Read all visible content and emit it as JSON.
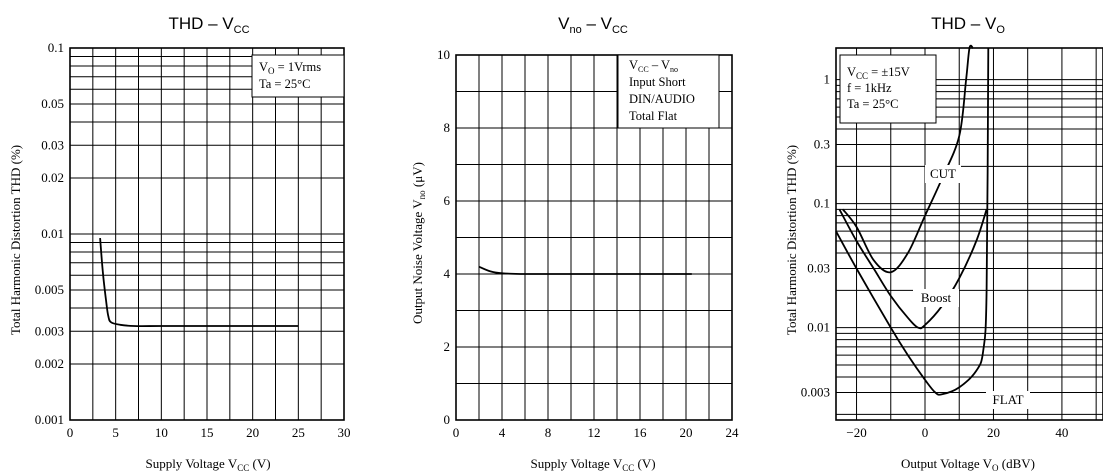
{
  "chart_data": [
    {
      "type": "line",
      "title": "THD – V",
      "title_sub": "CC",
      "xlabel": "Supply Voltage V",
      "xlabel_sub": "CC",
      "xlabel_unit": " (V)",
      "ylabel": "Total Harmonic Distortion THD (%)",
      "xlim": [
        0,
        30
      ],
      "ylim": [
        0.001,
        0.1
      ],
      "yscale": "log",
      "grid": true,
      "x_ticks": [
        0,
        5,
        10,
        15,
        20,
        25,
        30
      ],
      "y_ticks": [
        0.001,
        0.002,
        0.003,
        0.005,
        0.01,
        0.02,
        0.03,
        0.05,
        0.1
      ],
      "y_tick_labels": [
        "0.001",
        "0.002",
        "0.003",
        "0.005",
        "0.01",
        "0.02",
        "0.03",
        "0.05",
        "0.1"
      ],
      "notes": [
        {
          "text": "V",
          "sub": "O",
          "rest": " = 1Vrms"
        },
        {
          "text": "Ta = 25°C"
        }
      ],
      "notes_position": "top-right",
      "series": [
        {
          "x": [
            3.3,
            3.6,
            4.0,
            4.2,
            4.5,
            5.5,
            7,
            10,
            15,
            20,
            25
          ],
          "y": [
            0.0095,
            0.0062,
            0.0042,
            0.0036,
            0.00335,
            0.00325,
            0.0032,
            0.0032,
            0.0032,
            0.0032,
            0.0032
          ]
        }
      ]
    },
    {
      "type": "line",
      "title": "V",
      "title_sub": "no",
      "title_rest": " – V",
      "title_sub2": "CC",
      "xlabel": "Supply Voltage V",
      "xlabel_sub": "CC",
      "xlabel_unit": " (V)",
      "ylabel": "Output Noise Voltage V",
      "ylabel_sub": "no",
      "ylabel_unit": " (μV)",
      "xlim": [
        0,
        24
      ],
      "ylim": [
        0,
        10
      ],
      "grid": true,
      "x_ticks": [
        0,
        4,
        8,
        12,
        16,
        20,
        24
      ],
      "y_ticks": [
        0,
        2,
        4,
        6,
        8,
        10
      ],
      "notes": [
        {
          "text": "V",
          "sub": "CC",
          "rest": " – V",
          "sub2": "no"
        },
        {
          "text": "Input Short"
        },
        {
          "text": "DIN/AUDIO"
        },
        {
          "text": "Total Flat"
        }
      ],
      "notes_position": "top-right",
      "series": [
        {
          "x": [
            2,
            3,
            4,
            6,
            10,
            15,
            20.5
          ],
          "y": [
            4.2,
            4.07,
            4.02,
            4.0,
            4.0,
            4.0,
            4.0
          ]
        }
      ]
    },
    {
      "type": "line",
      "title": "THD – V",
      "title_sub": "O",
      "xlabel": "Output Voltage V",
      "xlabel_sub": "O",
      "xlabel_unit": " (dBV)",
      "ylabel": "Total Harmonic Distortion THD (%)",
      "xlim": [
        -26,
        52
      ],
      "ylim": [
        0.0018,
        1.8
      ],
      "yscale": "log",
      "grid": true,
      "x_ticks": [
        -20,
        0,
        20,
        40
      ],
      "x_tick_labels": [
        "−20",
        "0",
        "20",
        "40"
      ],
      "y_ticks": [
        0.003,
        0.01,
        0.03,
        0.1,
        0.3,
        1
      ],
      "y_tick_labels": [
        "0.003",
        "0.01",
        "0.03",
        "0.1",
        "0.3",
        "1"
      ],
      "notes": [
        {
          "text": "V",
          "sub": "CC",
          "rest": " = ±15V"
        },
        {
          "text": "f = 1kHz"
        },
        {
          "text": "Ta = 25°C"
        }
      ],
      "notes_position": "top-left",
      "series": [
        {
          "name": "CUT",
          "x": [
            -24,
            -20,
            -15,
            -10,
            -5,
            0,
            5,
            10,
            12,
            13,
            14
          ],
          "y": [
            0.09,
            0.065,
            0.035,
            0.028,
            0.04,
            0.08,
            0.16,
            0.35,
            1.0,
            1.8,
            2.5
          ]
        },
        {
          "name": "Boost",
          "x": [
            -25,
            -20,
            -15,
            -10,
            -5,
            -2,
            0,
            5,
            10,
            15,
            18
          ],
          "y": [
            0.09,
            0.05,
            0.03,
            0.018,
            0.012,
            0.01,
            0.0105,
            0.015,
            0.025,
            0.05,
            0.09
          ]
        },
        {
          "name": "FLAT",
          "x": [
            -26,
            -20,
            -10,
            -5,
            0,
            3,
            5,
            10,
            15,
            17,
            18,
            18.5
          ],
          "y": [
            0.06,
            0.03,
            0.01,
            0.006,
            0.0038,
            0.003,
            0.0029,
            0.0033,
            0.0045,
            0.0065,
            0.02,
            1.8
          ]
        }
      ],
      "curve_labels": [
        "CUT",
        "Boost",
        "FLAT"
      ]
    }
  ]
}
